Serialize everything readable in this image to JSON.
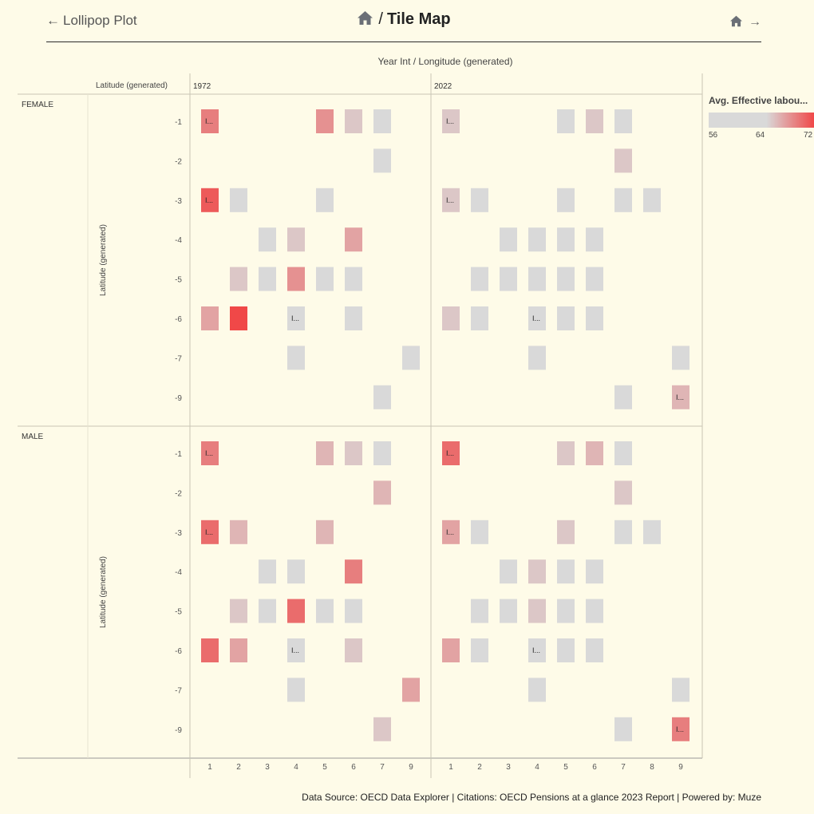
{
  "nav": {
    "prev_label": "Lollipop Plot",
    "title": "Tile Map",
    "prev_arrow": "←",
    "next_arrow": "→"
  },
  "footer": "Data Source: OECD Data Explorer | Citations: OECD Pensions at a glance 2023 Report | Powered by: Muze",
  "legend": {
    "title": "Avg. Effective labou...",
    "min_label": "56",
    "mid_label": "64",
    "max_label": "72",
    "colors": [
      "#d9d9d9",
      "#d9d9d9",
      "#f04848"
    ]
  },
  "chart_data": {
    "type": "heatmap",
    "column_axis_title": "Year Int / Longitude (generated)",
    "row_axis_title": "Latitude (generated)",
    "row_header_label": "Latitude (generated)",
    "facets_columns": [
      {
        "label": "1972",
        "x": [
          "1",
          "2",
          "3",
          "4",
          "5",
          "6",
          "7",
          "9"
        ]
      },
      {
        "label": "2022",
        "x": [
          "1",
          "2",
          "3",
          "4",
          "5",
          "6",
          "7",
          "8",
          "9"
        ]
      }
    ],
    "facets_rows": [
      {
        "label": "FEMALE",
        "y": [
          "-1",
          "-2",
          "-3",
          "-4",
          "-5",
          "-6",
          "-7",
          "-9"
        ]
      },
      {
        "label": "MALE",
        "y": [
          "-1",
          "-2",
          "-3",
          "-4",
          "-5",
          "-6",
          "-7",
          "-9"
        ]
      }
    ],
    "color_scale": {
      "domain": [
        56,
        64,
        72
      ],
      "range": [
        "#d9d9d9",
        "#d9d9d9",
        "#f04848"
      ]
    },
    "cells": [
      {
        "sex": "FEMALE",
        "year": "1972",
        "lon": "1",
        "lat": "-1",
        "value": 69,
        "label": "I..."
      },
      {
        "sex": "FEMALE",
        "year": "1972",
        "lon": "5",
        "lat": "-1",
        "value": 68
      },
      {
        "sex": "FEMALE",
        "year": "1972",
        "lon": "6",
        "lat": "-1",
        "value": 65
      },
      {
        "sex": "FEMALE",
        "year": "1972",
        "lon": "7",
        "lat": "-1",
        "value": 62
      },
      {
        "sex": "FEMALE",
        "year": "1972",
        "lon": "7",
        "lat": "-2",
        "value": 62
      },
      {
        "sex": "FEMALE",
        "year": "1972",
        "lon": "1",
        "lat": "-3",
        "value": 71,
        "label": "I..."
      },
      {
        "sex": "FEMALE",
        "year": "1972",
        "lon": "2",
        "lat": "-3",
        "value": 62
      },
      {
        "sex": "FEMALE",
        "year": "1972",
        "lon": "5",
        "lat": "-3",
        "value": 64
      },
      {
        "sex": "FEMALE",
        "year": "1972",
        "lon": "3",
        "lat": "-4",
        "value": 62
      },
      {
        "sex": "FEMALE",
        "year": "1972",
        "lon": "4",
        "lat": "-4",
        "value": 65
      },
      {
        "sex": "FEMALE",
        "year": "1972",
        "lon": "6",
        "lat": "-4",
        "value": 67
      },
      {
        "sex": "FEMALE",
        "year": "1972",
        "lon": "2",
        "lat": "-5",
        "value": 65
      },
      {
        "sex": "FEMALE",
        "year": "1972",
        "lon": "3",
        "lat": "-5",
        "value": 62
      },
      {
        "sex": "FEMALE",
        "year": "1972",
        "lon": "4",
        "lat": "-5",
        "value": 68
      },
      {
        "sex": "FEMALE",
        "year": "1972",
        "lon": "5",
        "lat": "-5",
        "value": 62
      },
      {
        "sex": "FEMALE",
        "year": "1972",
        "lon": "6",
        "lat": "-5",
        "value": 62
      },
      {
        "sex": "FEMALE",
        "year": "1972",
        "lon": "1",
        "lat": "-6",
        "value": 67
      },
      {
        "sex": "FEMALE",
        "year": "1972",
        "lon": "2",
        "lat": "-6",
        "value": 72
      },
      {
        "sex": "FEMALE",
        "year": "1972",
        "lon": "4",
        "lat": "-6",
        "value": 62,
        "label": "I..."
      },
      {
        "sex": "FEMALE",
        "year": "1972",
        "lon": "6",
        "lat": "-6",
        "value": 62
      },
      {
        "sex": "FEMALE",
        "year": "1972",
        "lon": "4",
        "lat": "-7",
        "value": 62
      },
      {
        "sex": "FEMALE",
        "year": "1972",
        "lon": "9",
        "lat": "-7",
        "value": 62
      },
      {
        "sex": "FEMALE",
        "year": "1972",
        "lon": "7",
        "lat": "-9",
        "value": 62
      },
      {
        "sex": "FEMALE",
        "year": "2022",
        "lon": "1",
        "lat": "-1",
        "value": 65,
        "label": "I..."
      },
      {
        "sex": "FEMALE",
        "year": "2022",
        "lon": "5",
        "lat": "-1",
        "value": 62
      },
      {
        "sex": "FEMALE",
        "year": "2022",
        "lon": "6",
        "lat": "-1",
        "value": 65
      },
      {
        "sex": "FEMALE",
        "year": "2022",
        "lon": "7",
        "lat": "-1",
        "value": 62
      },
      {
        "sex": "FEMALE",
        "year": "2022",
        "lon": "7",
        "lat": "-2",
        "value": 65
      },
      {
        "sex": "FEMALE",
        "year": "2022",
        "lon": "1",
        "lat": "-3",
        "value": 65,
        "label": "I..."
      },
      {
        "sex": "FEMALE",
        "year": "2022",
        "lon": "2",
        "lat": "-3",
        "value": 62
      },
      {
        "sex": "FEMALE",
        "year": "2022",
        "lon": "5",
        "lat": "-3",
        "value": 62
      },
      {
        "sex": "FEMALE",
        "year": "2022",
        "lon": "7",
        "lat": "-3",
        "value": 62
      },
      {
        "sex": "FEMALE",
        "year": "2022",
        "lon": "8",
        "lat": "-3",
        "value": 62
      },
      {
        "sex": "FEMALE",
        "year": "2022",
        "lon": "3",
        "lat": "-4",
        "value": 62
      },
      {
        "sex": "FEMALE",
        "year": "2022",
        "lon": "4",
        "lat": "-4",
        "value": 62
      },
      {
        "sex": "FEMALE",
        "year": "2022",
        "lon": "5",
        "lat": "-4",
        "value": 62
      },
      {
        "sex": "FEMALE",
        "year": "2022",
        "lon": "6",
        "lat": "-4",
        "value": 62
      },
      {
        "sex": "FEMALE",
        "year": "2022",
        "lon": "2",
        "lat": "-5",
        "value": 62
      },
      {
        "sex": "FEMALE",
        "year": "2022",
        "lon": "3",
        "lat": "-5",
        "value": 62
      },
      {
        "sex": "FEMALE",
        "year": "2022",
        "lon": "4",
        "lat": "-5",
        "value": 62
      },
      {
        "sex": "FEMALE",
        "year": "2022",
        "lon": "5",
        "lat": "-5",
        "value": 62
      },
      {
        "sex": "FEMALE",
        "year": "2022",
        "lon": "6",
        "lat": "-5",
        "value": 62
      },
      {
        "sex": "FEMALE",
        "year": "2022",
        "lon": "1",
        "lat": "-6",
        "value": 65
      },
      {
        "sex": "FEMALE",
        "year": "2022",
        "lon": "2",
        "lat": "-6",
        "value": 62
      },
      {
        "sex": "FEMALE",
        "year": "2022",
        "lon": "4",
        "lat": "-6",
        "value": 62,
        "label": "I..."
      },
      {
        "sex": "FEMALE",
        "year": "2022",
        "lon": "5",
        "lat": "-6",
        "value": 62
      },
      {
        "sex": "FEMALE",
        "year": "2022",
        "lon": "6",
        "lat": "-6",
        "value": 62
      },
      {
        "sex": "FEMALE",
        "year": "2022",
        "lon": "4",
        "lat": "-7",
        "value": 62
      },
      {
        "sex": "FEMALE",
        "year": "2022",
        "lon": "9",
        "lat": "-7",
        "value": 62
      },
      {
        "sex": "FEMALE",
        "year": "2022",
        "lon": "7",
        "lat": "-9",
        "value": 62
      },
      {
        "sex": "FEMALE",
        "year": "2022",
        "lon": "9",
        "lat": "-9",
        "value": 66,
        "label": "I..."
      },
      {
        "sex": "MALE",
        "year": "1972",
        "lon": "1",
        "lat": "-1",
        "value": 69,
        "label": "I..."
      },
      {
        "sex": "MALE",
        "year": "1972",
        "lon": "5",
        "lat": "-1",
        "value": 66
      },
      {
        "sex": "MALE",
        "year": "1972",
        "lon": "6",
        "lat": "-1",
        "value": 65
      },
      {
        "sex": "MALE",
        "year": "1972",
        "lon": "7",
        "lat": "-1",
        "value": 62
      },
      {
        "sex": "MALE",
        "year": "1972",
        "lon": "7",
        "lat": "-2",
        "value": 66
      },
      {
        "sex": "MALE",
        "year": "1972",
        "lon": "1",
        "lat": "-3",
        "value": 70,
        "label": "I..."
      },
      {
        "sex": "MALE",
        "year": "1972",
        "lon": "2",
        "lat": "-3",
        "value": 66
      },
      {
        "sex": "MALE",
        "year": "1972",
        "lon": "5",
        "lat": "-3",
        "value": 66
      },
      {
        "sex": "MALE",
        "year": "1972",
        "lon": "3",
        "lat": "-4",
        "value": 62
      },
      {
        "sex": "MALE",
        "year": "1972",
        "lon": "4",
        "lat": "-4",
        "value": 64
      },
      {
        "sex": "MALE",
        "year": "1972",
        "lon": "6",
        "lat": "-4",
        "value": 69
      },
      {
        "sex": "MALE",
        "year": "1972",
        "lon": "2",
        "lat": "-5",
        "value": 65
      },
      {
        "sex": "MALE",
        "year": "1972",
        "lon": "3",
        "lat": "-5",
        "value": 62
      },
      {
        "sex": "MALE",
        "year": "1972",
        "lon": "4",
        "lat": "-5",
        "value": 70
      },
      {
        "sex": "MALE",
        "year": "1972",
        "lon": "5",
        "lat": "-5",
        "value": 62
      },
      {
        "sex": "MALE",
        "year": "1972",
        "lon": "6",
        "lat": "-5",
        "value": 62
      },
      {
        "sex": "MALE",
        "year": "1972",
        "lon": "1",
        "lat": "-6",
        "value": 70
      },
      {
        "sex": "MALE",
        "year": "1972",
        "lon": "2",
        "lat": "-6",
        "value": 67
      },
      {
        "sex": "MALE",
        "year": "1972",
        "lon": "4",
        "lat": "-6",
        "value": 62,
        "label": "I..."
      },
      {
        "sex": "MALE",
        "year": "1972",
        "lon": "6",
        "lat": "-6",
        "value": 65
      },
      {
        "sex": "MALE",
        "year": "1972",
        "lon": "4",
        "lat": "-7",
        "value": 62
      },
      {
        "sex": "MALE",
        "year": "1972",
        "lon": "9",
        "lat": "-7",
        "value": 67
      },
      {
        "sex": "MALE",
        "year": "1972",
        "lon": "7",
        "lat": "-9",
        "value": 65
      },
      {
        "sex": "MALE",
        "year": "2022",
        "lon": "1",
        "lat": "-1",
        "value": 70,
        "label": "I..."
      },
      {
        "sex": "MALE",
        "year": "2022",
        "lon": "5",
        "lat": "-1",
        "value": 65
      },
      {
        "sex": "MALE",
        "year": "2022",
        "lon": "6",
        "lat": "-1",
        "value": 66
      },
      {
        "sex": "MALE",
        "year": "2022",
        "lon": "7",
        "lat": "-1",
        "value": 62
      },
      {
        "sex": "MALE",
        "year": "2022",
        "lon": "7",
        "lat": "-2",
        "value": 65
      },
      {
        "sex": "MALE",
        "year": "2022",
        "lon": "1",
        "lat": "-3",
        "value": 67,
        "label": "I..."
      },
      {
        "sex": "MALE",
        "year": "2022",
        "lon": "2",
        "lat": "-3",
        "value": 62
      },
      {
        "sex": "MALE",
        "year": "2022",
        "lon": "5",
        "lat": "-3",
        "value": 65
      },
      {
        "sex": "MALE",
        "year": "2022",
        "lon": "7",
        "lat": "-3",
        "value": 62
      },
      {
        "sex": "MALE",
        "year": "2022",
        "lon": "8",
        "lat": "-3",
        "value": 62
      },
      {
        "sex": "MALE",
        "year": "2022",
        "lon": "3",
        "lat": "-4",
        "value": 62
      },
      {
        "sex": "MALE",
        "year": "2022",
        "lon": "4",
        "lat": "-4",
        "value": 65
      },
      {
        "sex": "MALE",
        "year": "2022",
        "lon": "5",
        "lat": "-4",
        "value": 62
      },
      {
        "sex": "MALE",
        "year": "2022",
        "lon": "6",
        "lat": "-4",
        "value": 62
      },
      {
        "sex": "MALE",
        "year": "2022",
        "lon": "2",
        "lat": "-5",
        "value": 62
      },
      {
        "sex": "MALE",
        "year": "2022",
        "lon": "3",
        "lat": "-5",
        "value": 62
      },
      {
        "sex": "MALE",
        "year": "2022",
        "lon": "4",
        "lat": "-5",
        "value": 65
      },
      {
        "sex": "MALE",
        "year": "2022",
        "lon": "5",
        "lat": "-5",
        "value": 62
      },
      {
        "sex": "MALE",
        "year": "2022",
        "lon": "6",
        "lat": "-5",
        "value": 62
      },
      {
        "sex": "MALE",
        "year": "2022",
        "lon": "1",
        "lat": "-6",
        "value": 67
      },
      {
        "sex": "MALE",
        "year": "2022",
        "lon": "2",
        "lat": "-6",
        "value": 62
      },
      {
        "sex": "MALE",
        "year": "2022",
        "lon": "4",
        "lat": "-6",
        "value": 62,
        "label": "I..."
      },
      {
        "sex": "MALE",
        "year": "2022",
        "lon": "5",
        "lat": "-6",
        "value": 62
      },
      {
        "sex": "MALE",
        "year": "2022",
        "lon": "6",
        "lat": "-6",
        "value": 62
      },
      {
        "sex": "MALE",
        "year": "2022",
        "lon": "4",
        "lat": "-7",
        "value": 62
      },
      {
        "sex": "MALE",
        "year": "2022",
        "lon": "9",
        "lat": "-7",
        "value": 62
      },
      {
        "sex": "MALE",
        "year": "2022",
        "lon": "7",
        "lat": "-9",
        "value": 62
      },
      {
        "sex": "MALE",
        "year": "2022",
        "lon": "9",
        "lat": "-9",
        "value": 69,
        "label": "I..."
      }
    ]
  }
}
